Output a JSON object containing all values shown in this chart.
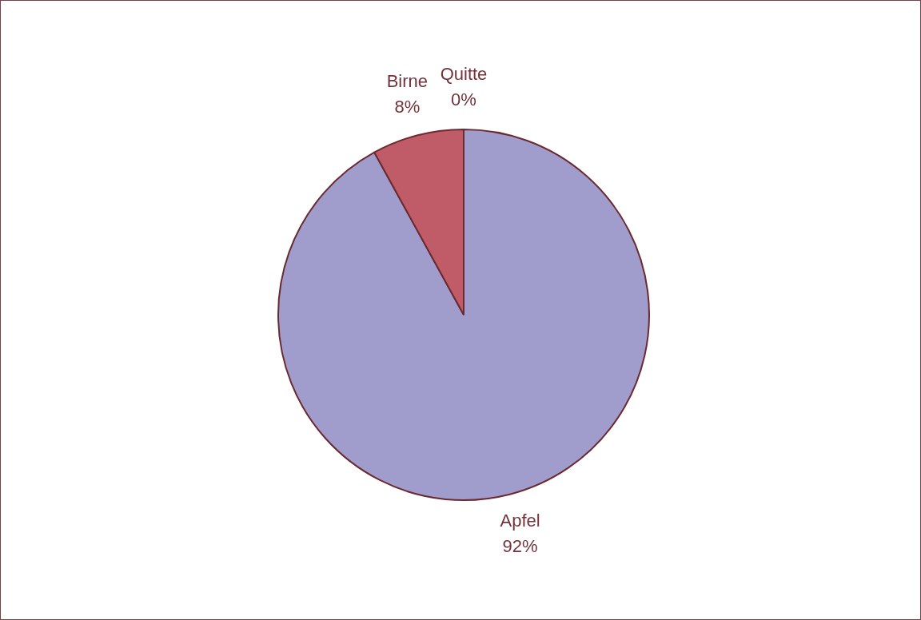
{
  "chart_data": {
    "type": "pie",
    "categories": [
      "Apfel",
      "Birne",
      "Quitte"
    ],
    "values": [
      92,
      8,
      0
    ],
    "value_labels": [
      "92%",
      "8%",
      "0%"
    ],
    "colors": [
      "#a09ccb",
      "#c05c68",
      "#f3ead8"
    ],
    "legend": false
  }
}
